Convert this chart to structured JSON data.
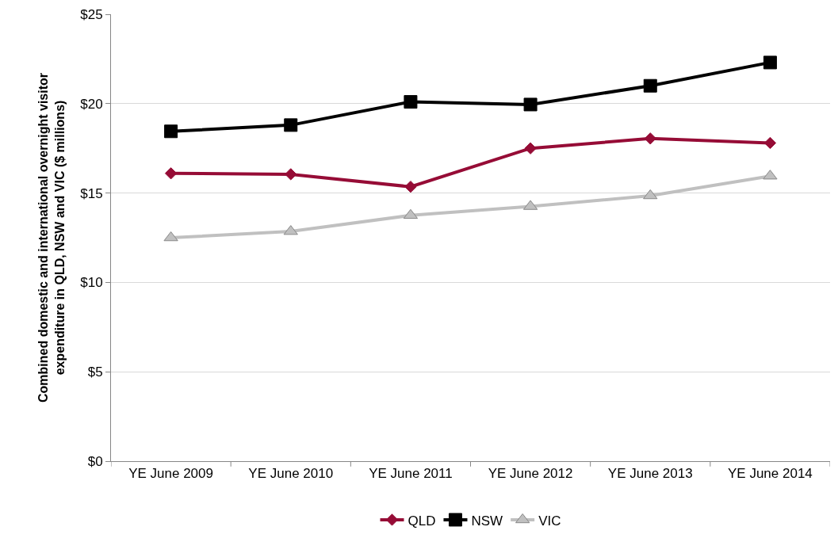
{
  "chart_data": {
    "type": "line",
    "ylabel": "Combined domestic and international overnight visitor expenditure in QLD, NSW and VIC ($ millions)",
    "categories": [
      "YE June 2009",
      "YE June 2010",
      "YE June 2011",
      "YE June 2012",
      "YE June 2013",
      "YE June 2014"
    ],
    "series": [
      {
        "name": "QLD",
        "color": "#960c36",
        "marker": "diamond",
        "values": [
          16.1,
          16.05,
          15.35,
          17.5,
          18.05,
          17.8
        ]
      },
      {
        "name": "NSW",
        "color": "#000000",
        "marker": "square",
        "values": [
          18.45,
          18.8,
          20.1,
          19.95,
          21.0,
          22.3
        ]
      },
      {
        "name": "VIC",
        "color": "#c0c0c0",
        "marker": "triangle",
        "values": [
          12.5,
          12.85,
          13.75,
          14.25,
          14.85,
          15.95
        ]
      }
    ],
    "ylim": [
      0,
      25
    ],
    "yticks": [
      {
        "value": 0,
        "label": "$0"
      },
      {
        "value": 5,
        "label": "$5"
      },
      {
        "value": 10,
        "label": "$10"
      },
      {
        "value": 15,
        "label": "$15"
      },
      {
        "value": 20,
        "label": "$20"
      },
      {
        "value": 25,
        "label": "$25"
      }
    ],
    "grid": "y",
    "legend": "bottom",
    "line_style": "solid"
  }
}
